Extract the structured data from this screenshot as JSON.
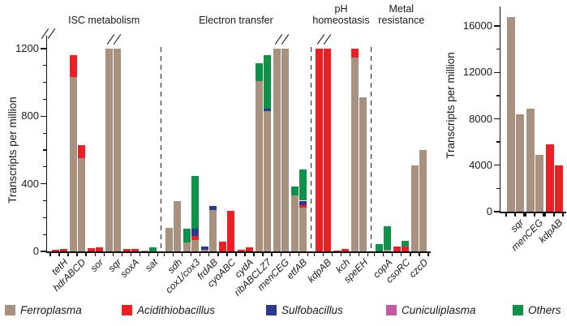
{
  "figure": {
    "background": "#ffffff"
  },
  "chart_data": {
    "species_colors": {
      "ferroplasma": "#A8917F",
      "acidithiobacillus": "#EC2024",
      "sulfobacillus": "#2B3990",
      "cuniculiplasma": "#C25AA4",
      "others": "#0F9247"
    },
    "legend": {
      "items": [
        {
          "label": "Ferroplasma",
          "species": "ferroplasma"
        },
        {
          "label": "Acidithiobacillus",
          "species": "acidithiobacillus"
        },
        {
          "label": "Sulfobacillus",
          "species": "sulfobacillus"
        },
        {
          "label": "Cuniculiplasma",
          "species": "cuniculiplasma"
        },
        {
          "label": "Others",
          "species": "others"
        }
      ]
    },
    "charts": [
      {
        "id": "main-transcripts-chart",
        "type": "stacked-bar",
        "ylabel": "Transcripts per million",
        "y_axis": {
          "max": 1200,
          "major_ticks": [
            0,
            400,
            800,
            1200
          ],
          "minor_step": 100,
          "axis_break": true
        },
        "groups": [
          {
            "label_lines": [
              "ISC metabolism"
            ],
            "genes": [
              {
                "name": "tetH",
                "overflow": false,
                "bars": [
                  [
                    {
                      "species": "acidithiobacillus",
                      "value": 12
                    }
                  ],
                  [
                    {
                      "species": "acidithiobacillus",
                      "value": 15
                    }
                  ]
                ]
              },
              {
                "name": "hdrABCD",
                "overflow": false,
                "bars": [
                  [
                    {
                      "species": "ferroplasma",
                      "value": 1030
                    },
                    {
                      "species": "acidithiobacillus",
                      "value": 130
                    }
                  ],
                  [
                    {
                      "species": "ferroplasma",
                      "value": 550
                    },
                    {
                      "species": "acidithiobacillus",
                      "value": 80
                    }
                  ]
                ]
              },
              {
                "name": "sor",
                "overflow": false,
                "bars": [
                  [
                    {
                      "species": "acidithiobacillus",
                      "value": 18
                    }
                  ],
                  [
                    {
                      "species": "acidithiobacillus",
                      "value": 22
                    }
                  ]
                ]
              },
              {
                "name": "sqr",
                "overflow": true,
                "bars": [
                  [
                    {
                      "species": "ferroplasma",
                      "value": 1200
                    }
                  ],
                  [
                    {
                      "species": "ferroplasma",
                      "value": 1200
                    }
                  ]
                ]
              },
              {
                "name": "soxA",
                "overflow": false,
                "bars": [
                  [
                    {
                      "species": "acidithiobacillus",
                      "value": 14
                    }
                  ],
                  [
                    {
                      "species": "acidithiobacillus",
                      "value": 14
                    }
                  ]
                ]
              },
              {
                "name": "sat",
                "overflow": false,
                "bars": [
                  [
                    {
                      "species": "ferroplasma",
                      "value": 6
                    }
                  ],
                  [
                    {
                      "species": "others",
                      "value": 25
                    }
                  ]
                ]
              }
            ]
          },
          {
            "label_lines": [
              "Electron transfer"
            ],
            "genes": [
              {
                "name": "sdh",
                "overflow": false,
                "bars": [
                  [
                    {
                      "species": "ferroplasma",
                      "value": 140
                    }
                  ],
                  [
                    {
                      "species": "ferroplasma",
                      "value": 300
                    }
                  ]
                ]
              },
              {
                "name": "cox1/cox3",
                "overflow": false,
                "bars": [
                  [
                    {
                      "species": "ferroplasma",
                      "value": 52
                    },
                    {
                      "species": "others",
                      "value": 84
                    }
                  ],
                  [
                    {
                      "species": "ferroplasma",
                      "value": 65
                    },
                    {
                      "species": "acidithiobacillus",
                      "value": 25
                    },
                    {
                      "species": "sulfobacillus",
                      "value": 46
                    },
                    {
                      "species": "others",
                      "value": 309
                    }
                  ]
                ]
              },
              {
                "name": "frdAB",
                "overflow": false,
                "bars": [
                  [
                    {
                      "species": "ferroplasma",
                      "value": 12
                    },
                    {
                      "species": "sulfobacillus",
                      "value": 18
                    }
                  ],
                  [
                    {
                      "species": "ferroplasma",
                      "value": 244
                    },
                    {
                      "species": "sulfobacillus",
                      "value": 27
                    }
                  ]
                ]
              },
              {
                "name": "cyoABC",
                "overflow": false,
                "bars": [
                  [
                    {
                      "species": "acidithiobacillus",
                      "value": 59
                    }
                  ],
                  [
                    {
                      "species": "acidithiobacillus",
                      "value": 240
                    }
                  ]
                ]
              },
              {
                "name": "cydA",
                "overflow": false,
                "bars": [
                  [
                    {
                      "species": "acidithiobacillus",
                      "value": 12
                    }
                  ],
                  [
                    {
                      "species": "acidithiobacillus",
                      "value": 25
                    }
                  ]
                ]
              },
              {
                "name": "ribABCLZ7",
                "overflow": false,
                "bars": [
                  [
                    {
                      "species": "ferroplasma",
                      "value": 1010
                    },
                    {
                      "species": "others",
                      "value": 105
                    }
                  ],
                  [
                    {
                      "species": "ferroplasma",
                      "value": 830
                    },
                    {
                      "species": "sulfobacillus",
                      "value": 15
                    },
                    {
                      "species": "others",
                      "value": 315
                    }
                  ]
                ]
              },
              {
                "name": "menCEG",
                "overflow": true,
                "bars": [
                  [
                    {
                      "species": "ferroplasma",
                      "value": 1200
                    }
                  ],
                  [
                    {
                      "species": "ferroplasma",
                      "value": 1200
                    }
                  ]
                ]
              },
              {
                "name": "etfAB",
                "overflow": false,
                "bars": [
                  [
                    {
                      "species": "ferroplasma",
                      "value": 330
                    },
                    {
                      "species": "others",
                      "value": 55
                    }
                  ],
                  [
                    {
                      "species": "ferroplasma",
                      "value": 258
                    },
                    {
                      "species": "acidithiobacillus",
                      "value": 16
                    },
                    {
                      "species": "sulfobacillus",
                      "value": 26
                    },
                    {
                      "species": "others",
                      "value": 185
                    }
                  ]
                ]
              }
            ]
          },
          {
            "label_lines": [
              "pH",
              "homeostasis"
            ],
            "genes": [
              {
                "name": "kdpAB",
                "overflow": true,
                "bars": [
                  [
                    {
                      "species": "acidithiobacillus",
                      "value": 1200
                    }
                  ],
                  [
                    {
                      "species": "acidithiobacillus",
                      "value": 1200
                    }
                  ]
                ]
              },
              {
                "name": "kch",
                "overflow": false,
                "bars": [
                  [
                    {
                      "species": "acidithiobacillus",
                      "value": 6
                    }
                  ],
                  [
                    {
                      "species": "acidithiobacillus",
                      "value": 15
                    }
                  ]
                ]
              },
              {
                "name": "speEH",
                "overflow": false,
                "bars": [
                  [
                    {
                      "species": "ferroplasma",
                      "value": 1145
                    },
                    {
                      "species": "acidithiobacillus",
                      "value": 55
                    }
                  ],
                  [
                    {
                      "species": "ferroplasma",
                      "value": 910
                    }
                  ]
                ]
              }
            ]
          },
          {
            "label_lines": [
              "Metal",
              "resistance"
            ],
            "genes": [
              {
                "name": "copA",
                "overflow": false,
                "bars": [
                  [
                    {
                      "species": "others",
                      "value": 45
                    }
                  ],
                  [
                    {
                      "species": "ferroplasma",
                      "value": 10
                    },
                    {
                      "species": "others",
                      "value": 140
                    }
                  ]
                ]
              },
              {
                "name": "csoRC",
                "overflow": false,
                "bars": [
                  [
                    {
                      "species": "acidithiobacillus",
                      "value": 30
                    }
                  ],
                  [
                    {
                      "species": "acidithiobacillus",
                      "value": 30
                    },
                    {
                      "species": "others",
                      "value": 32
                    }
                  ]
                ]
              },
              {
                "name": "czcD",
                "overflow": false,
                "bars": [
                  [
                    {
                      "species": "ferroplasma",
                      "value": 510
                    }
                  ],
                  [
                    {
                      "species": "ferroplasma",
                      "value": 600
                    }
                  ]
                ]
              }
            ]
          }
        ]
      },
      {
        "id": "highly-expressed-chart",
        "type": "stacked-bar",
        "ylabel": "Transcripts per million",
        "y_axis": {
          "max": 16000,
          "major_ticks": [
            0,
            4000,
            8000,
            12000,
            16000
          ],
          "minor_step": 2000,
          "axis_break": false
        },
        "genes": [
          {
            "name": "sqr",
            "bars": [
              [
                {
                  "species": "ferroplasma",
                  "value": 16800
                }
              ],
              [
                {
                  "species": "ferroplasma",
                  "value": 8400
                }
              ]
            ]
          },
          {
            "name": "menCEG",
            "bars": [
              [
                {
                  "species": "ferroplasma",
                  "value": 8900
                }
              ],
              [
                {
                  "species": "ferroplasma",
                  "value": 4900
                }
              ]
            ]
          },
          {
            "name": "kdpAB",
            "bars": [
              [
                {
                  "species": "acidithiobacillus",
                  "value": 5800
                }
              ],
              [
                {
                  "species": "acidithiobacillus",
                  "value": 4000
                }
              ]
            ]
          }
        ]
      }
    ]
  }
}
